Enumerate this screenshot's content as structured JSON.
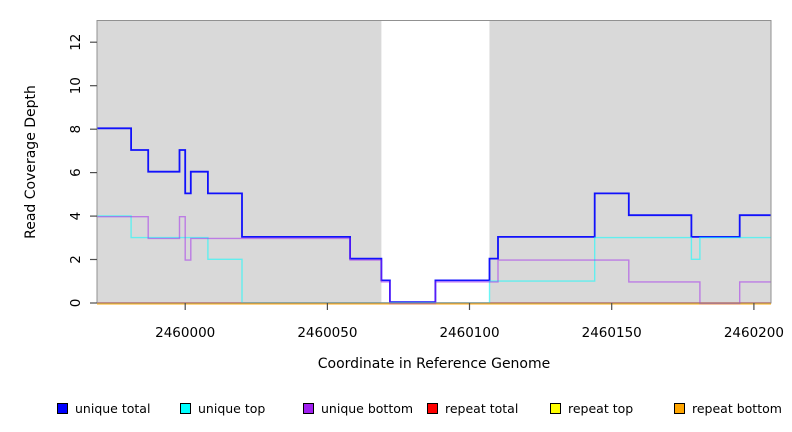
{
  "chart_data": {
    "type": "line",
    "subtype": "step",
    "title": "",
    "xlabel": "Coordinate in Reference Genome",
    "ylabel": "Read Coverage Depth",
    "xlim": [
      2459969,
      2460206
    ],
    "ylim": [
      0,
      13
    ],
    "x_ticks": [
      2460000,
      2460050,
      2460100,
      2460150,
      2460200
    ],
    "y_ticks": [
      0,
      2,
      4,
      6,
      8,
      10,
      12
    ],
    "grid": false,
    "plot_background": "#d9d9d9",
    "box_border_color": "#919191",
    "tick_color": "#4d4d4d",
    "highlight_region": {
      "x_start": 2460069,
      "x_end": 2460107,
      "color": "#ffffff"
    },
    "legend_position": "bottom",
    "series": [
      {
        "name": "unique total",
        "color": "#0000ff",
        "steps": [
          [
            2459969,
            8
          ],
          [
            2459981,
            7
          ],
          [
            2459987,
            6
          ],
          [
            2459998,
            7
          ],
          [
            2460000,
            5
          ],
          [
            2460002,
            6
          ],
          [
            2460008,
            5
          ],
          [
            2460020,
            3
          ],
          [
            2460058,
            2
          ],
          [
            2460069,
            1
          ],
          [
            2460072,
            0
          ],
          [
            2460088,
            1
          ],
          [
            2460107,
            2
          ],
          [
            2460110,
            3
          ],
          [
            2460144,
            5
          ],
          [
            2460156,
            4
          ],
          [
            2460178,
            3
          ],
          [
            2460195,
            4
          ]
        ],
        "x_end": 2460206
      },
      {
        "name": "unique top",
        "color": "#00ffff",
        "steps": [
          [
            2459969,
            4
          ],
          [
            2459981,
            3
          ],
          [
            2460008,
            2
          ],
          [
            2460020,
            0
          ],
          [
            2460107,
            1
          ],
          [
            2460144,
            3
          ],
          [
            2460178,
            2
          ],
          [
            2460181,
            3
          ]
        ],
        "x_end": 2460206
      },
      {
        "name": "unique bottom",
        "color": "#a020f0",
        "steps": [
          [
            2459969,
            4
          ],
          [
            2459987,
            3
          ],
          [
            2459998,
            4
          ],
          [
            2460000,
            2
          ],
          [
            2460002,
            3
          ],
          [
            2460058,
            2
          ],
          [
            2460069,
            1
          ],
          [
            2460072,
            0
          ],
          [
            2460088,
            1
          ],
          [
            2460110,
            2
          ],
          [
            2460156,
            1
          ],
          [
            2460181,
            0
          ],
          [
            2460195,
            1
          ]
        ],
        "x_end": 2460206
      },
      {
        "name": "repeat total",
        "color": "#ff0000",
        "steps": [
          [
            2459969,
            0
          ]
        ],
        "x_end": 2460206
      },
      {
        "name": "repeat top",
        "color": "#ffff00",
        "steps": [
          [
            2459969,
            0
          ]
        ],
        "x_end": 2460206
      },
      {
        "name": "repeat bottom",
        "color": "#ffa500",
        "steps": [
          [
            2459969,
            0
          ]
        ],
        "x_end": 2460206
      }
    ]
  }
}
